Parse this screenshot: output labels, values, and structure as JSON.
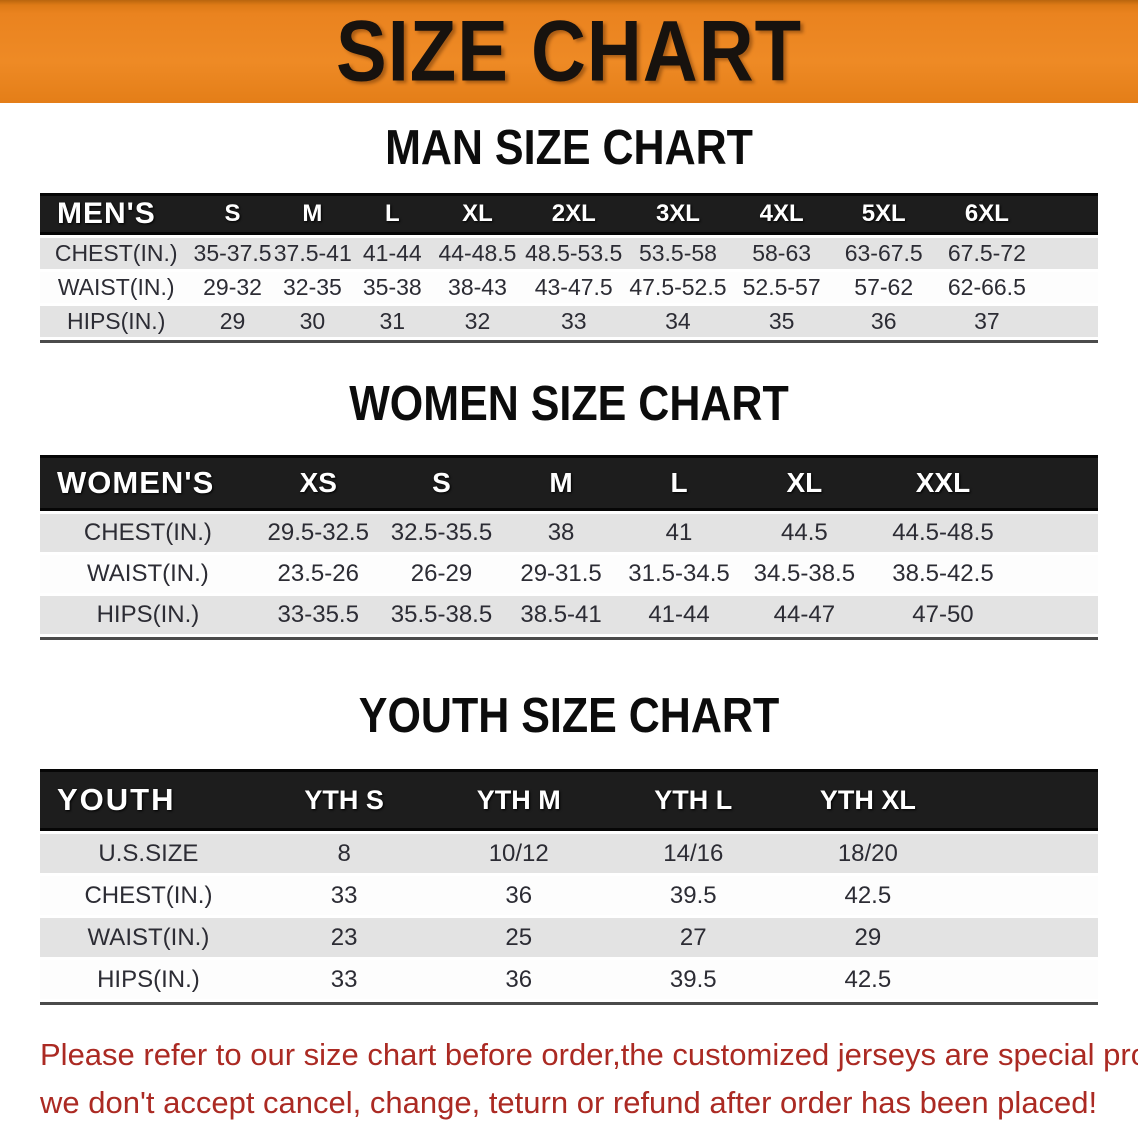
{
  "banner": {
    "title": "SIZE CHART",
    "bg_color": "#EA831F",
    "text_color": "#17120E"
  },
  "sections": {
    "men": {
      "heading": "MAN SIZE CHART",
      "header": [
        "MEN'S",
        "S",
        "M",
        "L",
        "XL",
        "2XL",
        "3XL",
        "4XL",
        "5XL",
        "6XL"
      ],
      "rows": [
        [
          "CHEST(IN.)",
          "35-37.5",
          "37.5-41",
          "41-44",
          "44-48.5",
          "48.5-53.5",
          "53.5-58",
          "58-63",
          "63-67.5",
          "67.5-72"
        ],
        [
          "WAIST(IN.)",
          "29-32",
          "32-35",
          "35-38",
          "38-43",
          "43-47.5",
          "47.5-52.5",
          "52.5-57",
          "57-62",
          "62-66.5"
        ],
        [
          "HIPS(IN.)",
          "29",
          "30",
          "31",
          "32",
          "33",
          "34",
          "35",
          "36",
          "37"
        ]
      ]
    },
    "women": {
      "heading": "WOMEN SIZE CHART",
      "header": [
        "WOMEN'S",
        "XS",
        "S",
        "M",
        "L",
        "XL",
        "XXL"
      ],
      "rows": [
        [
          "CHEST(IN.)",
          "29.5-32.5",
          "32.5-35.5",
          "38",
          "41",
          "44.5",
          "44.5-48.5"
        ],
        [
          "WAIST(IN.)",
          "23.5-26",
          "26-29",
          "29-31.5",
          "31.5-34.5",
          "34.5-38.5",
          "38.5-42.5"
        ],
        [
          "HIPS(IN.)",
          "33-35.5",
          "35.5-38.5",
          "38.5-41",
          "41-44",
          "44-47",
          "47-50"
        ]
      ]
    },
    "youth": {
      "heading": "YOUTH SIZE CHART",
      "header": [
        "YOUTH",
        "YTH S",
        "YTH M",
        "YTH L",
        "YTH XL"
      ],
      "rows": [
        [
          "U.S.SIZE",
          "8",
          "10/12",
          "14/16",
          "18/20"
        ],
        [
          "CHEST(IN.)",
          "33",
          "36",
          "39.5",
          "42.5"
        ],
        [
          "WAIST(IN.)",
          "23",
          "25",
          "27",
          "29"
        ],
        [
          "HIPS(IN.)",
          "33",
          "36",
          "39.5",
          "42.5"
        ]
      ]
    }
  },
  "disclaimer": {
    "line1": "Please refer to our size chart before order,the customized jerseys are special products,",
    "line2": "we don't accept cancel, change, teturn or refund after order has been placed!",
    "color": "#AB2A23"
  },
  "colors": {
    "header_bar": "#1D1D1D",
    "row_gray": "#E3E3E3",
    "row_white": "#FDFDFD",
    "table_text": "#2C2C34",
    "bottom_rule": "#4B4B4B"
  }
}
